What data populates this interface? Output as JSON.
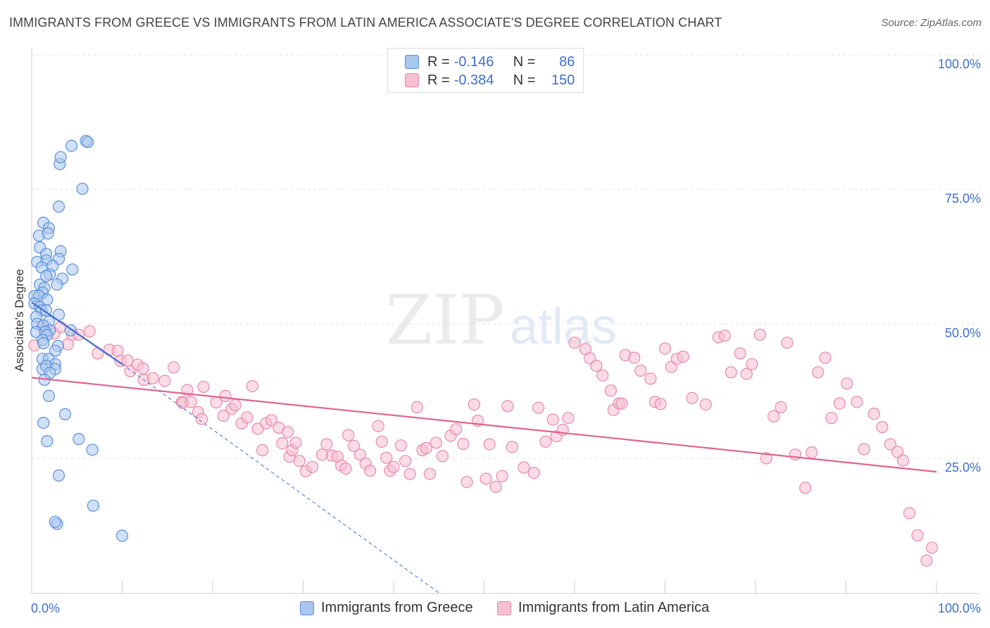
{
  "title": "IMMIGRANTS FROM GREECE VS IMMIGRANTS FROM LATIN AMERICA ASSOCIATE'S DEGREE CORRELATION CHART",
  "source": "Source: ZipAtlas.com",
  "legend": {
    "rows": [
      {
        "r_label": "R =",
        "r_value": "-0.146",
        "n_label": "N =",
        "n_value": "86"
      },
      {
        "r_label": "R =",
        "r_value": "-0.384",
        "n_label": "N =",
        "n_value": "150"
      }
    ]
  },
  "bottom_legend": [
    "Immigrants from Greece",
    "Immigrants from Latin America"
  ],
  "watermark": {
    "zip": "ZIP",
    "atlas": "atlas"
  },
  "colors": {
    "blue_fill": "#a9c6ef",
    "blue_stroke": "#5b8fdc",
    "blue_line": "#3d6fd0",
    "pink_fill": "#f7c0d2",
    "pink_stroke": "#e889a8",
    "pink_line": "#e0648e",
    "tick_label": "#3d6fd0",
    "grid": "#e3e3e3"
  },
  "chart_data": {
    "type": "scatter",
    "title": "IMMIGRANTS FROM GREECE VS IMMIGRANTS FROM LATIN AMERICA ASSOCIATE'S DEGREE CORRELATION CHART",
    "xlabel": "",
    "ylabel": "Associate's Degree",
    "xlim": [
      0,
      100
    ],
    "ylim": [
      0,
      100
    ],
    "x_tick_labels": [
      "0.0%",
      "100.0%"
    ],
    "y_tick_labels": [
      "25.0%",
      "50.0%",
      "75.0%",
      "100.0%"
    ],
    "y_ticks": [
      25,
      50,
      75,
      100
    ],
    "grid": true,
    "series": [
      {
        "name": "Immigrants from Greece",
        "R": -0.146,
        "N": 86,
        "trend_solid": [
          [
            0,
            54.0
          ],
          [
            10,
            42.5
          ]
        ],
        "trend_dashed": [
          [
            10,
            42.5
          ],
          [
            45,
            0
          ]
        ],
        "points": [
          [
            4.4,
            83.1
          ],
          [
            6.0,
            84.0
          ],
          [
            6.2,
            83.8
          ],
          [
            3.1,
            79.7
          ],
          [
            3.2,
            81.0
          ],
          [
            5.6,
            75.1
          ],
          [
            3.0,
            71.8
          ],
          [
            1.3,
            68.8
          ],
          [
            1.9,
            67.8
          ],
          [
            0.8,
            66.4
          ],
          [
            1.8,
            66.8
          ],
          [
            0.9,
            64.2
          ],
          [
            1.6,
            63.0
          ],
          [
            3.2,
            63.5
          ],
          [
            3.0,
            62.1
          ],
          [
            1.6,
            61.8
          ],
          [
            0.6,
            61.5
          ],
          [
            1.1,
            60.5
          ],
          [
            2.3,
            60.8
          ],
          [
            4.5,
            60.1
          ],
          [
            2.0,
            59.2
          ],
          [
            1.6,
            58.9
          ],
          [
            3.4,
            58.4
          ],
          [
            2.8,
            57.3
          ],
          [
            0.9,
            57.3
          ],
          [
            1.4,
            56.7
          ],
          [
            1.2,
            55.8
          ],
          [
            0.3,
            55.2
          ],
          [
            0.8,
            55.2
          ],
          [
            1.7,
            54.5
          ],
          [
            0.3,
            53.8
          ],
          [
            0.9,
            53.1
          ],
          [
            1.1,
            52.5
          ],
          [
            0.5,
            51.3
          ],
          [
            3.0,
            51.7
          ],
          [
            1.6,
            52.5
          ],
          [
            1.9,
            50.4
          ],
          [
            0.6,
            50.0
          ],
          [
            1.3,
            49.7
          ],
          [
            2.0,
            48.8
          ],
          [
            0.5,
            48.5
          ],
          [
            1.5,
            48.5
          ],
          [
            4.3,
            48.8
          ],
          [
            1.7,
            47.9
          ],
          [
            1.2,
            47.0
          ],
          [
            1.3,
            46.4
          ],
          [
            2.9,
            45.9
          ],
          [
            2.6,
            45.0
          ],
          [
            1.2,
            43.5
          ],
          [
            1.9,
            43.5
          ],
          [
            2.6,
            42.5
          ],
          [
            1.2,
            41.6
          ],
          [
            1.6,
            42.2
          ],
          [
            2.6,
            41.6
          ],
          [
            2.0,
            40.9
          ],
          [
            1.4,
            39.6
          ],
          [
            1.9,
            36.6
          ],
          [
            3.7,
            33.2
          ],
          [
            1.3,
            31.6
          ],
          [
            1.7,
            28.2
          ],
          [
            5.2,
            28.6
          ],
          [
            6.7,
            26.6
          ],
          [
            3.0,
            21.8
          ],
          [
            6.8,
            16.2
          ],
          [
            2.8,
            12.8
          ],
          [
            2.6,
            13.2
          ],
          [
            10.0,
            10.6
          ]
        ]
      },
      {
        "name": "Immigrants from Latin America",
        "R": -0.384,
        "N": 150,
        "trend_solid": [
          [
            0,
            40.0
          ],
          [
            100,
            22.5
          ]
        ],
        "points": [
          [
            0.3,
            46.0
          ],
          [
            1.2,
            49.5
          ],
          [
            2.5,
            48.2
          ],
          [
            3.2,
            49.4
          ],
          [
            4.0,
            46.2
          ],
          [
            4.5,
            48.0
          ],
          [
            5.2,
            48.0
          ],
          [
            6.4,
            48.6
          ],
          [
            7.3,
            44.5
          ],
          [
            8.6,
            45.2
          ],
          [
            9.5,
            45.0
          ],
          [
            9.8,
            43.1
          ],
          [
            10.6,
            43.2
          ],
          [
            10.9,
            41.2
          ],
          [
            11.7,
            42.4
          ],
          [
            12.3,
            41.7
          ],
          [
            12.4,
            39.6
          ],
          [
            13.4,
            39.9
          ],
          [
            14.7,
            39.4
          ],
          [
            15.7,
            41.9
          ],
          [
            16.6,
            35.5
          ],
          [
            16.7,
            35.3
          ],
          [
            17.2,
            37.7
          ],
          [
            17.6,
            35.5
          ],
          [
            18.4,
            33.6
          ],
          [
            18.8,
            32.3
          ],
          [
            19.0,
            38.3
          ],
          [
            20.4,
            35.4
          ],
          [
            21.2,
            32.9
          ],
          [
            21.4,
            36.6
          ],
          [
            22.1,
            34.2
          ],
          [
            22.5,
            34.9
          ],
          [
            23.2,
            31.5
          ],
          [
            23.8,
            32.6
          ],
          [
            24.4,
            38.4
          ],
          [
            25.0,
            30.5
          ],
          [
            25.5,
            26.5
          ],
          [
            25.9,
            31.5
          ],
          [
            26.5,
            32.1
          ],
          [
            27.3,
            30.7
          ],
          [
            27.7,
            27.8
          ],
          [
            28.3,
            29.9
          ],
          [
            28.5,
            25.3
          ],
          [
            28.8,
            26.5
          ],
          [
            29.2,
            27.9
          ],
          [
            29.6,
            24.5
          ],
          [
            30.3,
            22.6
          ],
          [
            31.0,
            23.4
          ],
          [
            32.1,
            25.7
          ],
          [
            32.6,
            27.6
          ],
          [
            33.2,
            25.5
          ],
          [
            33.8,
            25.3
          ],
          [
            34.2,
            23.7
          ],
          [
            34.7,
            23.1
          ],
          [
            35.0,
            29.3
          ],
          [
            35.6,
            27.3
          ],
          [
            36.3,
            25.7
          ],
          [
            36.9,
            24.0
          ],
          [
            37.4,
            22.7
          ],
          [
            38.3,
            31.0
          ],
          [
            38.7,
            28.1
          ],
          [
            39.2,
            25.1
          ],
          [
            39.6,
            22.7
          ],
          [
            40.0,
            23.4
          ],
          [
            40.8,
            27.4
          ],
          [
            41.3,
            24.5
          ],
          [
            41.8,
            22.1
          ],
          [
            42.6,
            34.5
          ],
          [
            43.2,
            26.5
          ],
          [
            43.6,
            26.9
          ],
          [
            44.0,
            22.1
          ],
          [
            44.7,
            27.9
          ],
          [
            45.4,
            25.4
          ],
          [
            46.3,
            29.2
          ],
          [
            46.9,
            30.4
          ],
          [
            47.7,
            27.7
          ],
          [
            48.1,
            20.6
          ],
          [
            48.9,
            35.0
          ],
          [
            49.3,
            32.0
          ],
          [
            50.2,
            21.2
          ],
          [
            50.6,
            27.6
          ],
          [
            51.3,
            19.7
          ],
          [
            52.0,
            21.7
          ],
          [
            52.6,
            34.7
          ],
          [
            53.1,
            27.1
          ],
          [
            54.4,
            23.3
          ],
          [
            55.5,
            22.3
          ],
          [
            56.0,
            34.4
          ],
          [
            56.8,
            28.1
          ],
          [
            57.6,
            32.2
          ],
          [
            58.0,
            29.1
          ],
          [
            58.7,
            30.3
          ],
          [
            59.3,
            32.5
          ],
          [
            60.0,
            46.5
          ],
          [
            61.2,
            45.3
          ],
          [
            61.7,
            43.6
          ],
          [
            62.4,
            42.2
          ],
          [
            63.1,
            40.4
          ],
          [
            64.0,
            37.6
          ],
          [
            64.3,
            34.0
          ],
          [
            64.9,
            35.2
          ],
          [
            65.2,
            35.2
          ],
          [
            65.6,
            44.2
          ],
          [
            66.6,
            43.7
          ],
          [
            67.3,
            41.3
          ],
          [
            68.4,
            39.8
          ],
          [
            68.9,
            35.5
          ],
          [
            69.5,
            35.1
          ],
          [
            70.0,
            45.4
          ],
          [
            70.7,
            42.0
          ],
          [
            71.3,
            43.5
          ],
          [
            72.0,
            43.9
          ],
          [
            73.0,
            36.2
          ],
          [
            74.5,
            35.0
          ],
          [
            75.9,
            47.5
          ],
          [
            76.6,
            47.8
          ],
          [
            77.3,
            41.0
          ],
          [
            78.3,
            44.5
          ],
          [
            79.0,
            40.7
          ],
          [
            79.6,
            42.5
          ],
          [
            80.5,
            48.0
          ],
          [
            81.2,
            25.0
          ],
          [
            82.0,
            32.8
          ],
          [
            82.8,
            34.5
          ],
          [
            83.5,
            46.5
          ],
          [
            84.4,
            25.7
          ],
          [
            85.5,
            19.5
          ],
          [
            86.2,
            26.1
          ],
          [
            86.9,
            41.0
          ],
          [
            87.7,
            43.7
          ],
          [
            88.4,
            32.5
          ],
          [
            89.3,
            35.2
          ],
          [
            90.1,
            38.9
          ],
          [
            91.2,
            35.5
          ],
          [
            92.0,
            26.7
          ],
          [
            93.1,
            33.3
          ],
          [
            94.0,
            30.8
          ],
          [
            94.9,
            27.6
          ],
          [
            95.7,
            26.2
          ],
          [
            96.3,
            24.6
          ],
          [
            97.0,
            14.8
          ],
          [
            97.9,
            10.7
          ],
          [
            98.9,
            6.0
          ],
          [
            99.5,
            8.4
          ]
        ]
      }
    ]
  }
}
